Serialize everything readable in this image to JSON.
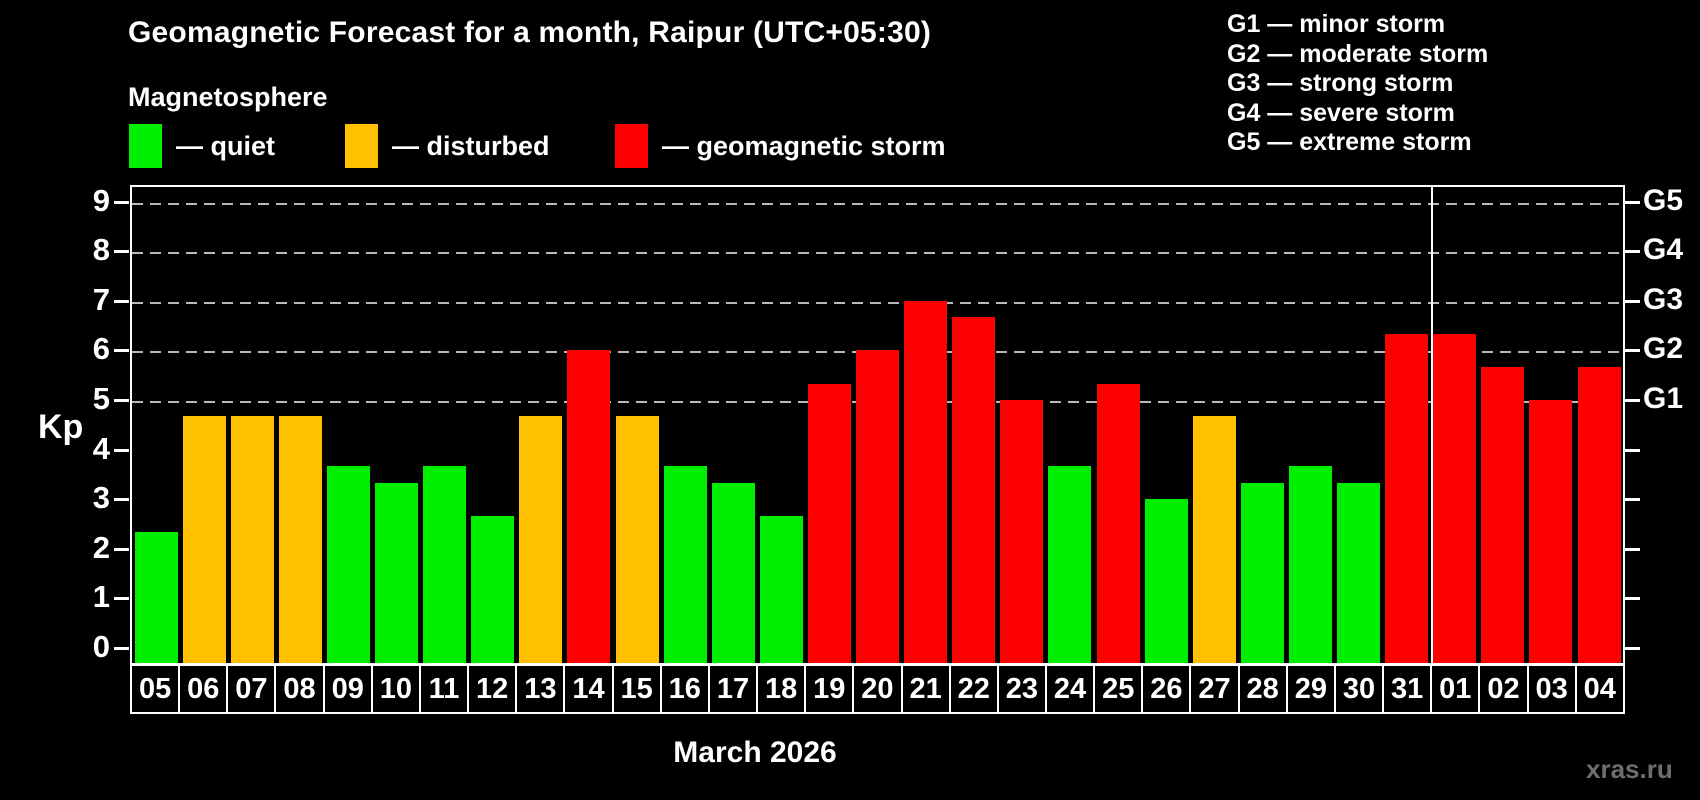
{
  "header": {
    "title": "Geomagnetic Forecast for a month, Raipur (UTC+05:30)",
    "subtitle": "Magnetosphere"
  },
  "legend": {
    "items": [
      {
        "label": "— quiet",
        "state": "quiet",
        "color": "#00ee00"
      },
      {
        "label": "— disturbed",
        "state": "disturbed",
        "color": "#ffc000"
      },
      {
        "label": "— geomagnetic storm",
        "state": "storm",
        "color": "#ff0000"
      }
    ]
  },
  "g_legend": {
    "lines": [
      {
        "label": "G1 — minor storm"
      },
      {
        "label": "G2 — moderate storm"
      },
      {
        "label": "G3 — strong storm"
      },
      {
        "label": "G4 — severe storm"
      },
      {
        "label": "G5 — extreme storm"
      }
    ]
  },
  "axes": {
    "y_label": "Kp",
    "y_ticks": [
      0,
      1,
      2,
      3,
      4,
      5,
      6,
      7,
      8,
      9
    ],
    "right_labels": [
      {
        "label": "G1",
        "kp": 5
      },
      {
        "label": "G2",
        "kp": 6
      },
      {
        "label": "G3",
        "kp": 7
      },
      {
        "label": "G4",
        "kp": 8
      },
      {
        "label": "G5",
        "kp": 9
      }
    ]
  },
  "footer": {
    "month_label": "March 2026",
    "watermark": "xras.ru"
  },
  "chart_data": {
    "type": "bar",
    "title": "Geomagnetic Forecast for a month, Raipur (UTC+05:30)",
    "xlabel": "March 2026",
    "ylabel": "Kp",
    "ylim": [
      0,
      9
    ],
    "grid": "dashed horizontal gridlines at Kp 5,6,7,8,9 (G1–G5); ticks every 1 Kp on both sides",
    "legend_position": "top-left",
    "categories": [
      "05",
      "06",
      "07",
      "08",
      "09",
      "10",
      "11",
      "12",
      "13",
      "14",
      "15",
      "16",
      "17",
      "18",
      "19",
      "20",
      "21",
      "22",
      "23",
      "24",
      "25",
      "26",
      "27",
      "28",
      "29",
      "30",
      "31",
      "01",
      "02",
      "03",
      "04"
    ],
    "values": [
      2.33,
      4.67,
      4.67,
      4.67,
      3.67,
      3.33,
      3.67,
      2.67,
      4.67,
      6.0,
      4.67,
      3.67,
      3.33,
      2.67,
      5.33,
      6.0,
      7.0,
      6.67,
      5.0,
      3.67,
      5.33,
      3.0,
      4.67,
      3.33,
      3.67,
      3.33,
      6.33,
      6.33,
      5.67,
      5.0,
      5.67
    ],
    "states": [
      "quiet",
      "disturbed",
      "disturbed",
      "disturbed",
      "quiet",
      "quiet",
      "quiet",
      "quiet",
      "disturbed",
      "storm",
      "disturbed",
      "quiet",
      "quiet",
      "quiet",
      "storm",
      "storm",
      "storm",
      "storm",
      "storm",
      "quiet",
      "storm",
      "quiet",
      "disturbed",
      "quiet",
      "quiet",
      "quiet",
      "storm",
      "storm",
      "storm",
      "storm",
      "storm"
    ],
    "colors": {
      "quiet": "#00ee00",
      "disturbed": "#ffc000",
      "storm": "#ff0000"
    },
    "month_boundary_after_category": "31",
    "gridline_kp_levels": [
      5,
      6,
      7,
      8,
      9
    ]
  }
}
